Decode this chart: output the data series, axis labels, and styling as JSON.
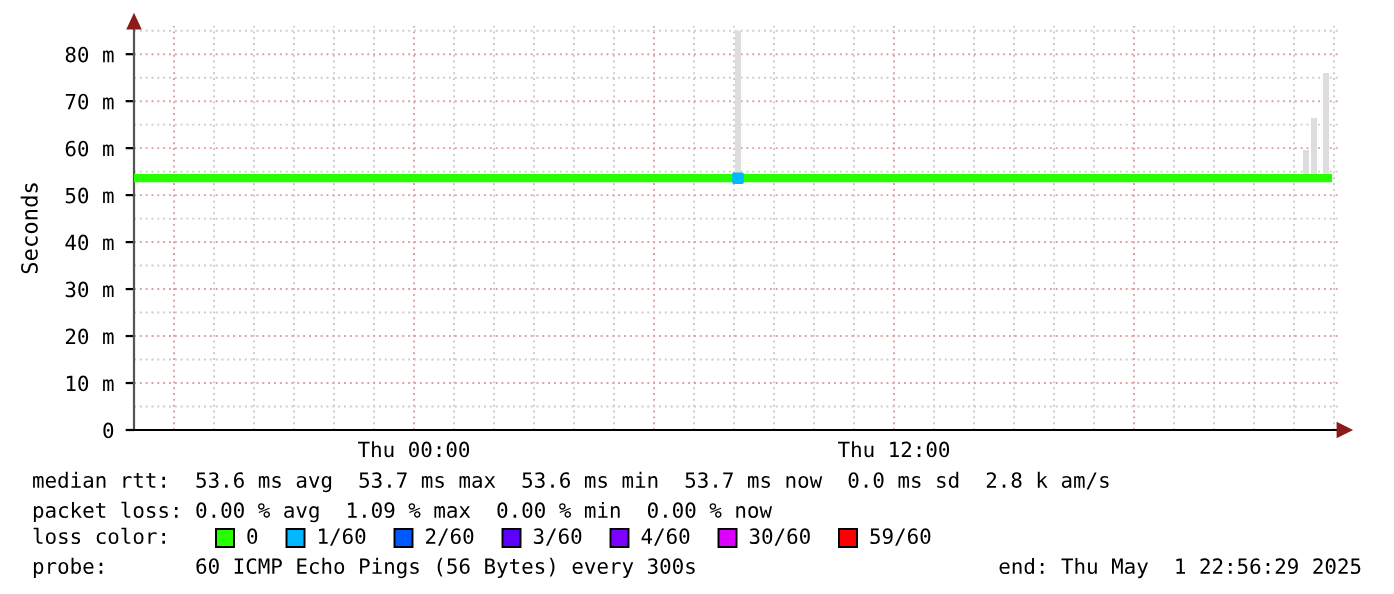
{
  "chart_data": {
    "type": "line",
    "ylabel": "Seconds",
    "xlim": [
      "2025-04-30T17:00",
      "2025-05-01T23:06"
    ],
    "xticks": [
      {
        "value": "2025-04-30T18:00",
        "label": null
      },
      {
        "value": "2025-05-01T00:00",
        "label": "Thu 00:00"
      },
      {
        "value": "2025-05-01T06:00",
        "label": null
      },
      {
        "value": "2025-05-01T12:00",
        "label": "Thu 12:00"
      },
      {
        "value": "2025-05-01T18:00",
        "label": null
      }
    ],
    "ylim": [
      0,
      86
    ],
    "yticks": [
      0,
      {
        "value": 10,
        "label": "10 m"
      },
      {
        "value": 20,
        "label": "20 m"
      },
      {
        "value": 30,
        "label": "30 m"
      },
      {
        "value": 40,
        "label": "40 m"
      },
      {
        "value": 50,
        "label": "50 m"
      },
      {
        "value": 60,
        "label": "60 m"
      },
      {
        "value": 70,
        "label": "70 m"
      },
      {
        "value": 80,
        "label": "80 m"
      }
    ],
    "grid": true,
    "legend": "bottom",
    "legend_title": "loss color:",
    "series": [
      {
        "type": "bar",
        "color": "#dddddd",
        "x": [
          "2025-05-01T08:06",
          "2025-05-01T22:18",
          "2025-05-01T22:30",
          "2025-05-01T22:48"
        ],
        "base": [
          53.6,
          53.6,
          53.6,
          53.6
        ],
        "values": [
          31.4,
          6,
          12.8,
          22.4
        ]
      },
      {
        "name": "0",
        "color": "#26ff00",
        "x": [
          "2025-04-30T17:00",
          "2025-05-01T22:51"
        ],
        "values": [
          53.6,
          53.6
        ]
      },
      {
        "name": "1/60",
        "type": "scatter",
        "color": "#00b8ff",
        "x": [
          "2025-05-01T08:06"
        ],
        "values": [
          53.6
        ]
      },
      {
        "name": "2/60",
        "type": "scatter",
        "color": "#0059ff"
      },
      {
        "name": "3/60",
        "type": "scatter",
        "color": "#5e00ff"
      },
      {
        "name": "4/60",
        "type": "scatter",
        "color": "#7e00ff"
      },
      {
        "name": "30/60",
        "type": "scatter",
        "color": "#dd00ff"
      },
      {
        "name": "59/60",
        "type": "scatter",
        "color": "#ff0000"
      }
    ],
    "annotations": [
      "median rtt:  53.6 ms avg  53.7 ms max  53.6 ms min  53.7 ms now  0.0 ms sd  2.8 k am/s",
      "packet loss: 0.00 % avg  1.09 % max  0.00 % min  0.00 % now",
      "probe:       60 ICMP Echo Pings (56 Bytes) every 300s",
      "end: Thu May  1 22:56:29 2025"
    ]
  }
}
